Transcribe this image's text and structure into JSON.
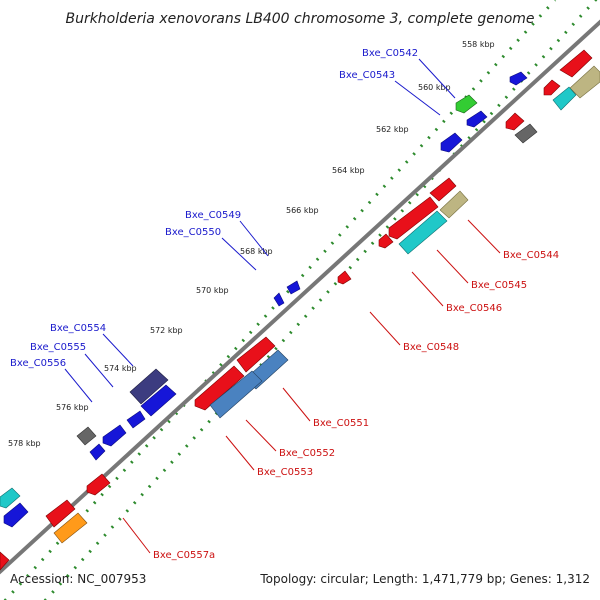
{
  "title": "Burkholderia xenovorans LB400 chromosome 3, complete genome",
  "footer": {
    "accession": "Accession: NC_007953",
    "topology": "Topology: circular; Length: 1,471,779 bp; Genes: 1,312"
  },
  "ticks": [
    "558 kbp",
    "560 kbp",
    "562 kbp",
    "564 kbp",
    "566 kbp",
    "568 kbp",
    "570 kbp",
    "572 kbp",
    "574 kbp",
    "576 kbp",
    "578 kbp"
  ],
  "forward_labels": [
    "Bxe_C0542",
    "Bxe_C0543",
    "Bxe_C0549",
    "Bxe_C0550",
    "Bxe_C0554",
    "Bxe_C0555",
    "Bxe_C0556"
  ],
  "reverse_labels": [
    "Bxe_C0544",
    "Bxe_C0545",
    "Bxe_C0546",
    "Bxe_C0548",
    "Bxe_C0551",
    "Bxe_C0552",
    "Bxe_C0553",
    "Bxe_C0557a"
  ],
  "colors": {
    "backbone": "#777777",
    "dotted_track": "#2e8b2e",
    "forward_label": "#1a1acc",
    "reverse_label": "#cc1111",
    "gene_red": "#e8101a",
    "gene_blue": "#1616d8",
    "gene_green": "#33cc33",
    "gene_gray": "#666666",
    "gene_cyan": "#20c8c8",
    "gene_khaki": "#bdb582",
    "gene_steelblue": "#4a82c0",
    "gene_darkslate": "#3c3c80",
    "gene_orange": "#ff9a1a"
  }
}
